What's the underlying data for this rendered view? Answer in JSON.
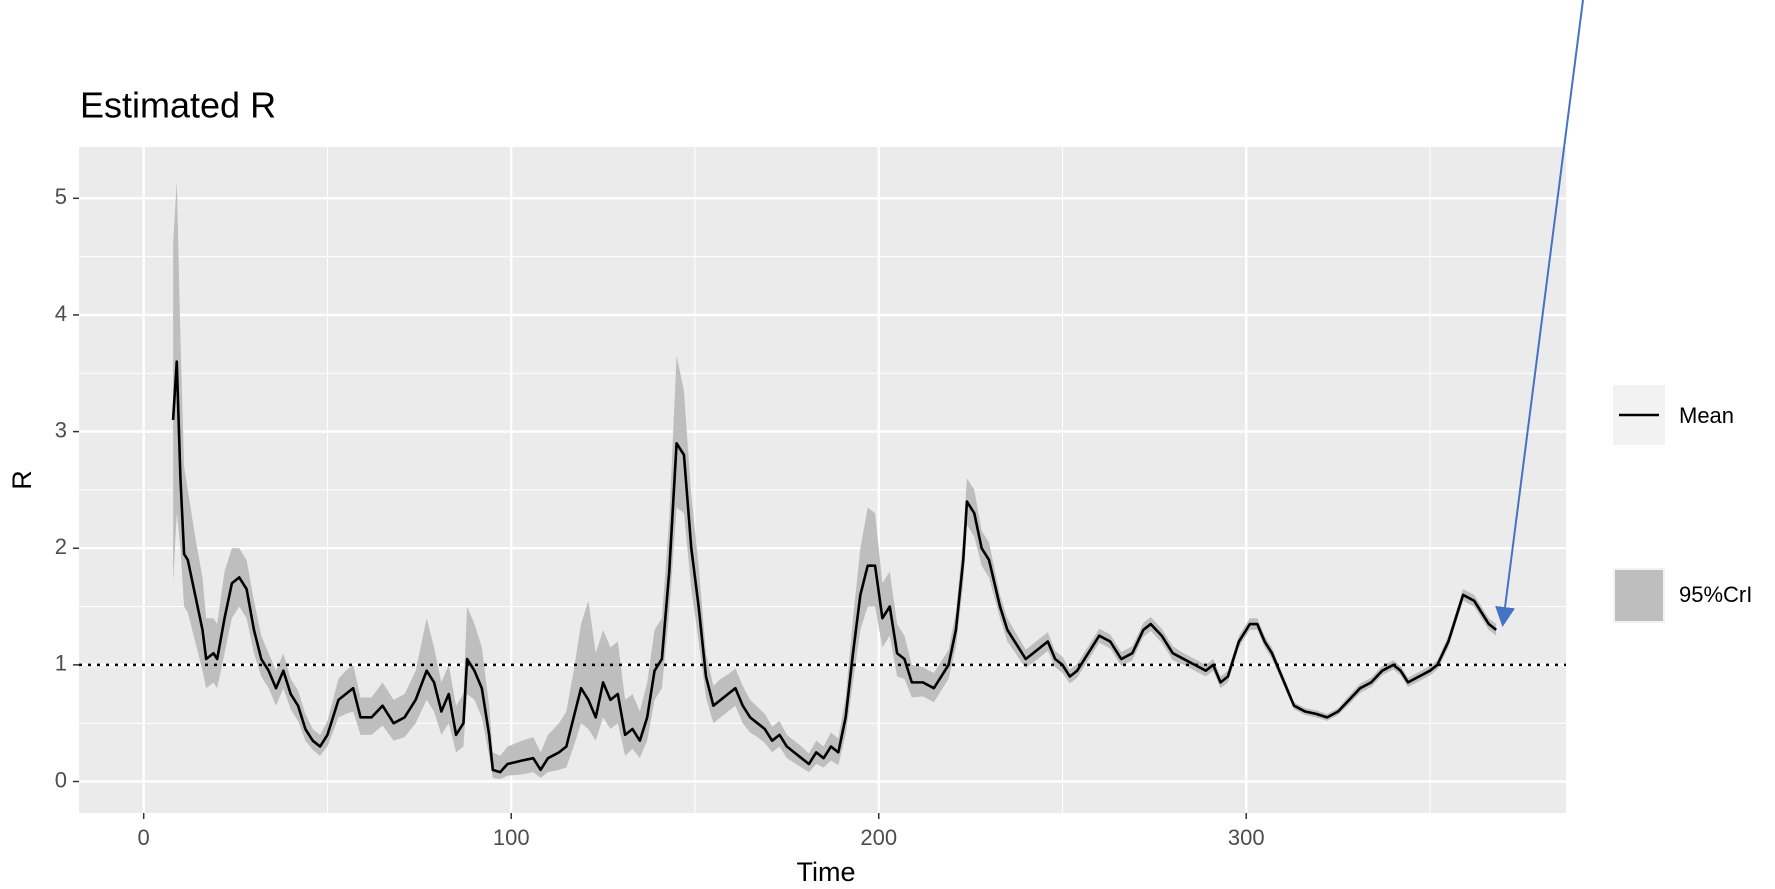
{
  "chart_data": {
    "type": "line",
    "title": "Estimated R",
    "x_label": "Time",
    "y_label": "R",
    "x": [
      8,
      9,
      10,
      11,
      12,
      14,
      16,
      17,
      19,
      20,
      22,
      24,
      26,
      28,
      30,
      32,
      34,
      36,
      38,
      40,
      42,
      44,
      46,
      48,
      50,
      53,
      55,
      57,
      59,
      62,
      65,
      68,
      71,
      74,
      77,
      79,
      81,
      83,
      85,
      87,
      88,
      90,
      92,
      94,
      95,
      97,
      99,
      103,
      106,
      108,
      110,
      113,
      115,
      117,
      119,
      121,
      123,
      125,
      127,
      129,
      131,
      133,
      135,
      137,
      139,
      141,
      143,
      145,
      147,
      149,
      151,
      153,
      155,
      157,
      159,
      161,
      163,
      165,
      167,
      169,
      171,
      173,
      175,
      177,
      179,
      181,
      183,
      185,
      187,
      189,
      191,
      193,
      195,
      197,
      199,
      201,
      203,
      205,
      207,
      209,
      212,
      215,
      217,
      219,
      221,
      223,
      224,
      226,
      228,
      230,
      233,
      235,
      237,
      240,
      242,
      244,
      246,
      248,
      250,
      252,
      254,
      257,
      260,
      263,
      266,
      269,
      272,
      274,
      277,
      280,
      283,
      286,
      289,
      291,
      293,
      295,
      298,
      301,
      303,
      305,
      307,
      309,
      311,
      313,
      316,
      319,
      322,
      325,
      328,
      331,
      334,
      337,
      340,
      342,
      344,
      347,
      350,
      352,
      355,
      357,
      359,
      362,
      364,
      366,
      368
    ],
    "series": [
      {
        "name": "Mean",
        "color": "#000000",
        "values": [
          3.1,
          3.6,
          2.6,
          1.95,
          1.9,
          1.6,
          1.3,
          1.05,
          1.1,
          1.05,
          1.4,
          1.7,
          1.75,
          1.65,
          1.3,
          1.05,
          0.95,
          0.8,
          0.95,
          0.75,
          0.65,
          0.45,
          0.35,
          0.3,
          0.4,
          0.7,
          0.75,
          0.8,
          0.55,
          0.55,
          0.65,
          0.5,
          0.55,
          0.7,
          0.95,
          0.85,
          0.6,
          0.75,
          0.4,
          0.5,
          1.05,
          0.95,
          0.8,
          0.4,
          0.1,
          0.08,
          0.15,
          0.18,
          0.2,
          0.1,
          0.2,
          0.25,
          0.3,
          0.55,
          0.8,
          0.7,
          0.55,
          0.85,
          0.7,
          0.75,
          0.4,
          0.45,
          0.35,
          0.55,
          0.95,
          1.05,
          1.8,
          2.9,
          2.8,
          2.0,
          1.5,
          0.9,
          0.65,
          0.7,
          0.75,
          0.8,
          0.65,
          0.55,
          0.5,
          0.45,
          0.35,
          0.4,
          0.3,
          0.25,
          0.2,
          0.15,
          0.25,
          0.2,
          0.3,
          0.25,
          0.55,
          1.1,
          1.6,
          1.85,
          1.85,
          1.4,
          1.5,
          1.1,
          1.05,
          0.85,
          0.85,
          0.8,
          0.9,
          1.0,
          1.3,
          1.9,
          2.4,
          2.3,
          2.0,
          1.9,
          1.5,
          1.3,
          1.2,
          1.05,
          1.1,
          1.15,
          1.2,
          1.05,
          1.0,
          0.9,
          0.95,
          1.1,
          1.25,
          1.2,
          1.05,
          1.1,
          1.3,
          1.35,
          1.25,
          1.1,
          1.05,
          1.0,
          0.95,
          1.0,
          0.85,
          0.9,
          1.2,
          1.35,
          1.35,
          1.2,
          1.1,
          0.95,
          0.8,
          0.65,
          0.6,
          0.58,
          0.55,
          0.6,
          0.7,
          0.8,
          0.85,
          0.95,
          1.0,
          0.95,
          0.85,
          0.9,
          0.95,
          1.0,
          1.2,
          1.4,
          1.6,
          1.55,
          1.45,
          1.35,
          1.3
        ]
      }
    ],
    "band": {
      "name": "95%CrI",
      "color": "#bebebe",
      "lower": [
        1.7,
        2.3,
        2.0,
        1.5,
        1.45,
        1.2,
        0.95,
        0.8,
        0.85,
        0.8,
        1.1,
        1.4,
        1.5,
        1.4,
        1.1,
        0.9,
        0.8,
        0.65,
        0.8,
        0.62,
        0.52,
        0.35,
        0.27,
        0.22,
        0.3,
        0.55,
        0.58,
        0.6,
        0.4,
        0.4,
        0.48,
        0.35,
        0.38,
        0.5,
        0.7,
        0.6,
        0.4,
        0.5,
        0.25,
        0.3,
        0.75,
        0.7,
        0.55,
        0.22,
        0.03,
        0.02,
        0.05,
        0.06,
        0.08,
        0.03,
        0.08,
        0.1,
        0.12,
        0.3,
        0.5,
        0.45,
        0.35,
        0.55,
        0.45,
        0.5,
        0.22,
        0.28,
        0.2,
        0.35,
        0.7,
        0.8,
        1.45,
        2.35,
        2.3,
        1.65,
        1.2,
        0.72,
        0.5,
        0.55,
        0.6,
        0.65,
        0.5,
        0.42,
        0.38,
        0.33,
        0.25,
        0.3,
        0.2,
        0.16,
        0.12,
        0.08,
        0.15,
        0.12,
        0.18,
        0.14,
        0.4,
        0.85,
        1.3,
        1.5,
        1.5,
        1.15,
        1.25,
        0.9,
        0.88,
        0.72,
        0.73,
        0.68,
        0.78,
        0.88,
        1.15,
        1.7,
        2.2,
        2.1,
        1.85,
        1.75,
        1.4,
        1.2,
        1.11,
        0.97,
        1.02,
        1.07,
        1.12,
        0.98,
        0.93,
        0.84,
        0.89,
        1.04,
        1.19,
        1.14,
        0.99,
        1.04,
        1.24,
        1.29,
        1.19,
        1.04,
        1.0,
        0.95,
        0.9,
        0.95,
        0.8,
        0.85,
        1.15,
        1.3,
        1.3,
        1.15,
        1.05,
        0.91,
        0.76,
        0.62,
        0.57,
        0.55,
        0.52,
        0.57,
        0.66,
        0.76,
        0.81,
        0.91,
        0.96,
        0.91,
        0.81,
        0.86,
        0.91,
        0.96,
        1.15,
        1.35,
        1.55,
        1.5,
        1.4,
        1.3,
        1.25
      ],
      "upper": [
        4.6,
        5.15,
        3.8,
        2.7,
        2.5,
        2.1,
        1.75,
        1.4,
        1.4,
        1.35,
        1.8,
        2.0,
        2.0,
        1.9,
        1.55,
        1.25,
        1.1,
        0.95,
        1.1,
        0.88,
        0.78,
        0.58,
        0.45,
        0.4,
        0.52,
        0.88,
        0.95,
        1.0,
        0.72,
        0.72,
        0.85,
        0.7,
        0.75,
        0.95,
        1.4,
        1.15,
        0.85,
        1.0,
        0.65,
        0.75,
        1.5,
        1.35,
        1.15,
        0.65,
        0.25,
        0.22,
        0.3,
        0.35,
        0.38,
        0.25,
        0.4,
        0.5,
        0.6,
        0.95,
        1.35,
        1.55,
        1.1,
        1.3,
        1.15,
        1.2,
        0.7,
        0.75,
        0.6,
        0.85,
        1.3,
        1.4,
        2.25,
        3.65,
        3.35,
        2.45,
        1.85,
        1.1,
        0.82,
        0.88,
        0.92,
        0.97,
        0.82,
        0.7,
        0.64,
        0.58,
        0.47,
        0.52,
        0.4,
        0.35,
        0.3,
        0.24,
        0.35,
        0.3,
        0.42,
        0.37,
        0.72,
        1.4,
        2.0,
        2.35,
        2.3,
        1.7,
        1.8,
        1.35,
        1.25,
        1.0,
        0.98,
        0.93,
        1.03,
        1.13,
        1.45,
        2.1,
        2.6,
        2.5,
        2.15,
        2.05,
        1.6,
        1.4,
        1.29,
        1.13,
        1.18,
        1.23,
        1.28,
        1.12,
        1.07,
        0.96,
        1.01,
        1.16,
        1.31,
        1.26,
        1.11,
        1.16,
        1.36,
        1.41,
        1.31,
        1.16,
        1.1,
        1.05,
        1.0,
        1.05,
        0.9,
        0.95,
        1.25,
        1.4,
        1.4,
        1.25,
        1.15,
        0.99,
        0.84,
        0.68,
        0.63,
        0.61,
        0.58,
        0.63,
        0.74,
        0.84,
        0.89,
        0.99,
        1.04,
        0.99,
        0.89,
        0.94,
        0.99,
        1.04,
        1.25,
        1.45,
        1.65,
        1.6,
        1.5,
        1.4,
        1.35
      ]
    },
    "hline": 1,
    "xlim": [
      -17.6,
      387
    ],
    "ylim": [
      -0.27,
      5.44
    ],
    "xticks": [
      0,
      100,
      200,
      300
    ],
    "yticks": [
      0,
      1,
      2,
      3,
      4,
      5
    ],
    "grid": true,
    "legend": "right"
  }
}
